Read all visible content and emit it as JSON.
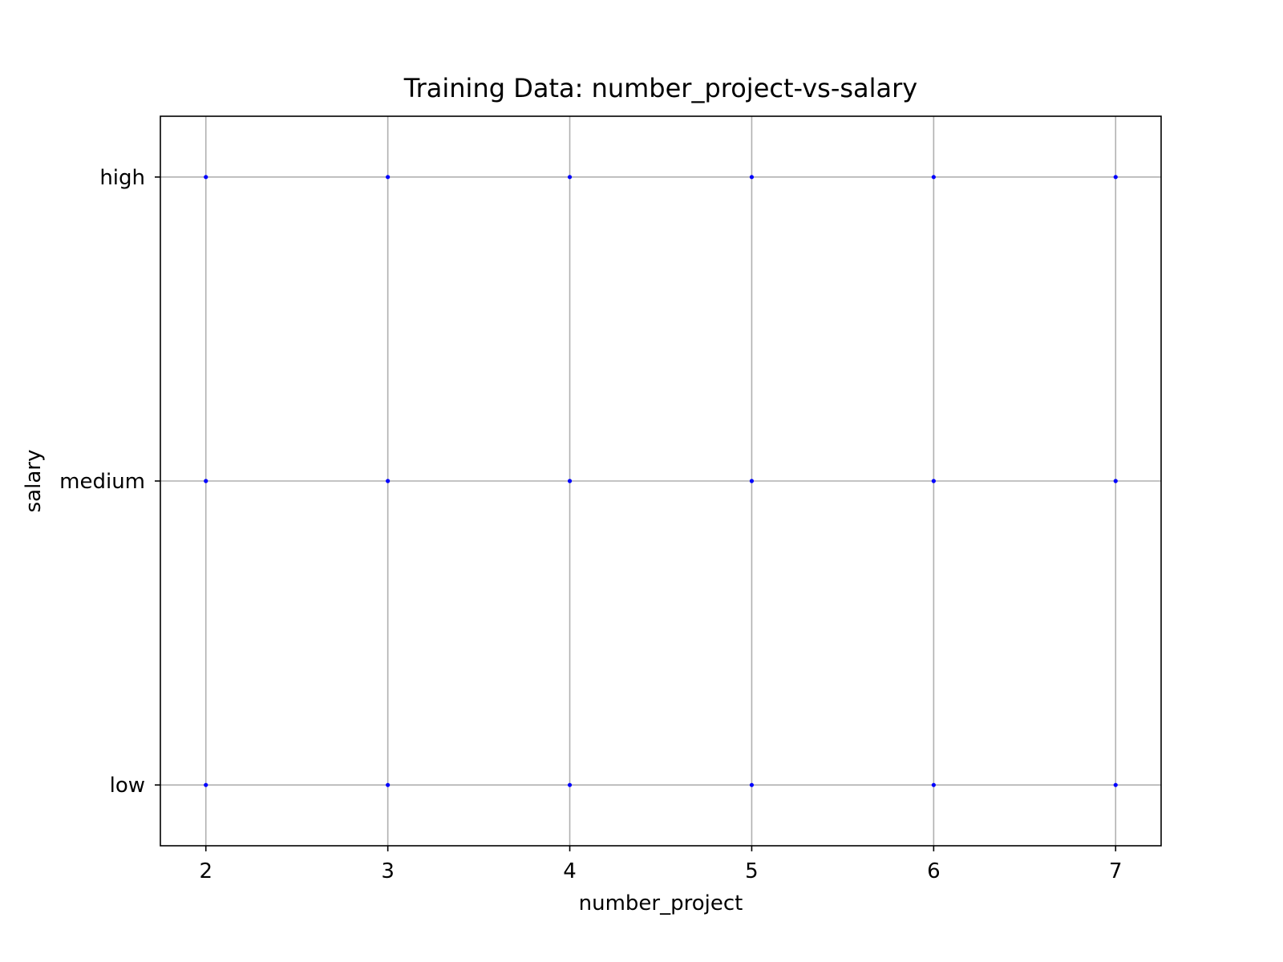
{
  "chart_data": {
    "type": "scatter",
    "title": "Training Data: number_project-vs-salary",
    "xlabel": "number_project",
    "ylabel": "salary",
    "x_ticks": [
      2,
      3,
      4,
      5,
      6,
      7
    ],
    "y_categories": [
      "low",
      "medium",
      "high"
    ],
    "xlim": [
      1.75,
      7.25
    ],
    "grid": true,
    "marker_color": "#0000ff",
    "grid_color": "#b0b0b0",
    "points": [
      {
        "x": 2,
        "y": "low"
      },
      {
        "x": 3,
        "y": "low"
      },
      {
        "x": 4,
        "y": "low"
      },
      {
        "x": 5,
        "y": "low"
      },
      {
        "x": 6,
        "y": "low"
      },
      {
        "x": 7,
        "y": "low"
      },
      {
        "x": 2,
        "y": "medium"
      },
      {
        "x": 3,
        "y": "medium"
      },
      {
        "x": 4,
        "y": "medium"
      },
      {
        "x": 5,
        "y": "medium"
      },
      {
        "x": 6,
        "y": "medium"
      },
      {
        "x": 7,
        "y": "medium"
      },
      {
        "x": 2,
        "y": "high"
      },
      {
        "x": 3,
        "y": "high"
      },
      {
        "x": 4,
        "y": "high"
      },
      {
        "x": 5,
        "y": "high"
      },
      {
        "x": 6,
        "y": "high"
      },
      {
        "x": 7,
        "y": "high"
      }
    ]
  }
}
